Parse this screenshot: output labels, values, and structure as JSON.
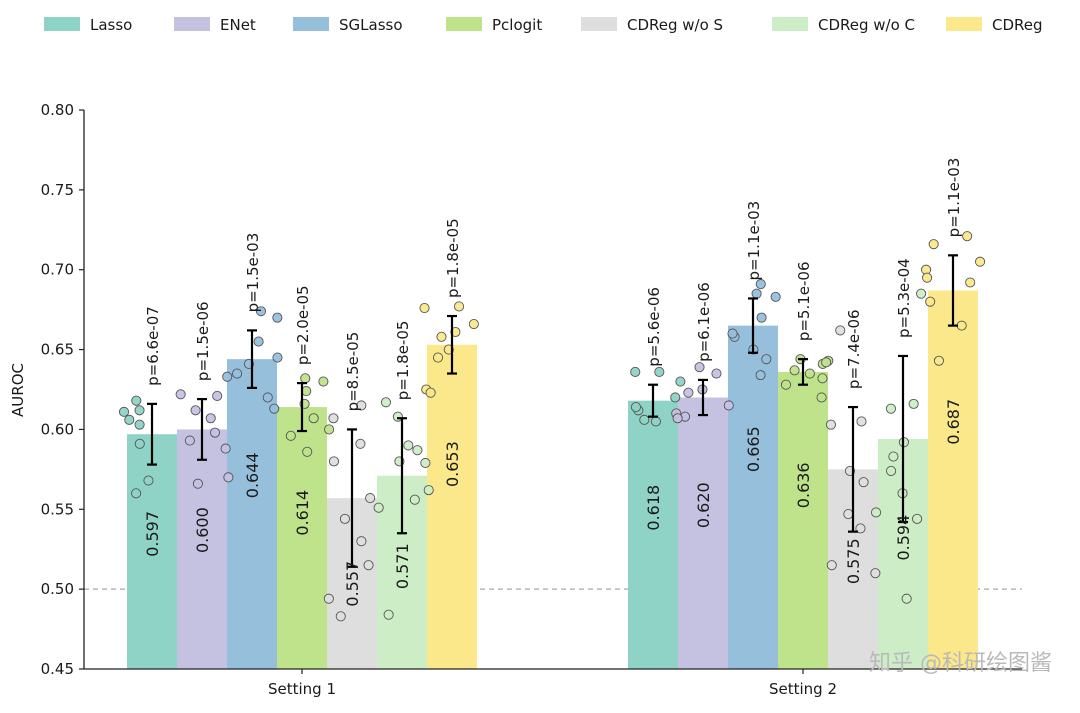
{
  "chart_data": {
    "type": "bar",
    "title": "",
    "ylabel": "AUROC",
    "xlabel": "",
    "ylim": [
      0.45,
      0.8
    ],
    "yticks": [
      "0.45",
      "0.50",
      "0.55",
      "0.60",
      "0.65",
      "0.70",
      "0.75",
      "0.80"
    ],
    "reference_line": 0.5,
    "legend_position": "top",
    "grid": false,
    "categories": [
      "Setting 1",
      "Setting 2"
    ],
    "series": [
      {
        "name": "Lasso",
        "color": "#8fd3c6",
        "values": [
          0.597,
          0.618
        ],
        "labels": [
          "0.597",
          "0.618"
        ],
        "err": [
          0.019,
          0.01
        ],
        "pvalues": [
          "p=6.6e-07",
          "p=5.6e-06"
        ],
        "points": [
          [
            0.611,
            0.618,
            0.606,
            0.591,
            0.568,
            0.56,
            0.612,
            0.603
          ],
          [
            0.636,
            0.63,
            0.62,
            0.612,
            0.606,
            0.605,
            0.614,
            0.636
          ]
        ]
      },
      {
        "name": "ENet",
        "color": "#c5c1e1",
        "values": [
          0.6,
          0.62
        ],
        "labels": [
          "0.600",
          "0.620"
        ],
        "err": [
          0.019,
          0.011
        ],
        "pvalues": [
          "p=1.5e-06",
          "p=6.1e-06"
        ],
        "points": [
          [
            0.588,
            0.598,
            0.622,
            0.621,
            0.612,
            0.607,
            0.593,
            0.57,
            0.566
          ],
          [
            0.635,
            0.639,
            0.625,
            0.623,
            0.61,
            0.608,
            0.607,
            0.615
          ]
        ]
      },
      {
        "name": "SGLasso",
        "color": "#96bfdc",
        "values": [
          0.644,
          0.665
        ],
        "labels": [
          "0.644",
          "0.665"
        ],
        "err": [
          0.018,
          0.017
        ],
        "pvalues": [
          "p=1.5e-03",
          "p=1.1e-03"
        ],
        "points": [
          [
            0.633,
            0.645,
            0.674,
            0.67,
            0.655,
            0.641,
            0.635,
            0.62,
            0.613
          ],
          [
            0.685,
            0.691,
            0.683,
            0.67,
            0.658,
            0.644,
            0.634,
            0.66,
            0.65
          ]
        ]
      },
      {
        "name": "Pclogit",
        "color": "#bfe38a",
        "values": [
          0.614,
          0.636
        ],
        "labels": [
          "0.614",
          "0.636"
        ],
        "err": [
          0.015,
          0.008
        ],
        "pvalues": [
          "p=2.0e-05",
          "p=5.1e-06"
        ],
        "points": [
          [
            0.632,
            0.63,
            0.624,
            0.616,
            0.607,
            0.6,
            0.596,
            0.586
          ],
          [
            0.644,
            0.643,
            0.641,
            0.637,
            0.635,
            0.632,
            0.628,
            0.62,
            0.642
          ]
        ]
      },
      {
        "name": "CDReg w/o S",
        "color": "#dedede",
        "values": [
          0.557,
          0.575
        ],
        "labels": [
          "0.557",
          "0.575"
        ],
        "err": [
          0.043,
          0.039
        ],
        "pvalues": [
          "p=8.5e-05",
          "p=7.4e-06"
        ],
        "points": [
          [
            0.544,
            0.494,
            0.615,
            0.607,
            0.591,
            0.58,
            0.557,
            0.53,
            0.515,
            0.483
          ],
          [
            0.662,
            0.605,
            0.603,
            0.567,
            0.574,
            0.547,
            0.538,
            0.515,
            0.51
          ]
        ]
      },
      {
        "name": "CDReg w/o C",
        "color": "#cdedc6",
        "values": [
          0.571,
          0.594
        ],
        "labels": [
          "0.571",
          "0.594"
        ],
        "err": [
          0.036,
          0.052
        ],
        "pvalues": [
          "p=1.8e-05",
          "p=5.3e-04"
        ],
        "points": [
          [
            0.58,
            0.579,
            0.587,
            0.617,
            0.608,
            0.59,
            0.562,
            0.556,
            0.551,
            0.484
          ],
          [
            0.685,
            0.616,
            0.613,
            0.592,
            0.574,
            0.56,
            0.548,
            0.544,
            0.494,
            0.583
          ]
        ]
      },
      {
        "name": "CDReg",
        "color": "#fbe88a",
        "values": [
          0.653,
          0.687
        ],
        "labels": [
          "0.653",
          "0.687"
        ],
        "err": [
          0.018,
          0.022
        ],
        "pvalues": [
          "p=1.8e-05",
          "p=1.1e-03"
        ],
        "points": [
          [
            0.677,
            0.676,
            0.666,
            0.661,
            0.658,
            0.65,
            0.645,
            0.625,
            0.623
          ],
          [
            0.721,
            0.716,
            0.705,
            0.7,
            0.695,
            0.692,
            0.68,
            0.665,
            0.643
          ]
        ]
      }
    ]
  },
  "watermark": "知乎 @科研绘图酱"
}
